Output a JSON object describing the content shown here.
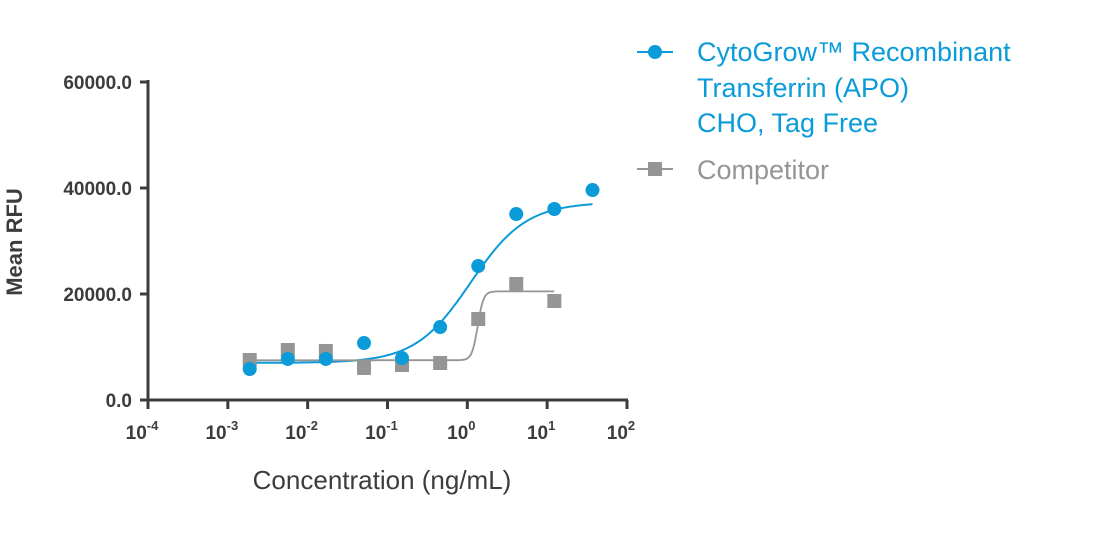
{
  "chart_data": {
    "type": "scatter",
    "title": "",
    "xlabel": "Concentration (ng/mL)",
    "ylabel": "Mean RFU",
    "xscale": "log",
    "xlim": [
      0.0001,
      100
    ],
    "ylim": [
      0,
      60000
    ],
    "x_ticks": [
      {
        "base": "10",
        "exp": "-4",
        "value": 0.0001
      },
      {
        "base": "10",
        "exp": "-3",
        "value": 0.001
      },
      {
        "base": "10",
        "exp": "-2",
        "value": 0.01
      },
      {
        "base": "10",
        "exp": "-1",
        "value": 0.1
      },
      {
        "base": "10",
        "exp": "0",
        "value": 1
      },
      {
        "base": "10",
        "exp": "1",
        "value": 10
      },
      {
        "base": "10",
        "exp": "2",
        "value": 100
      }
    ],
    "y_ticks": [
      {
        "label": "0.0",
        "value": 0
      },
      {
        "label": "20000.0",
        "value": 20000
      },
      {
        "label": "40000.0",
        "value": 40000
      },
      {
        "label": "60000.0",
        "value": 60000
      }
    ],
    "legend_position": "top-right",
    "series": [
      {
        "name": "CytoGrow™ Recombinant Transferrin (APO) CHO, Tag Free",
        "legend_lines": [
          "CytoGrow™ Recombinant",
          "Transferrin (APO)",
          "CHO, Tag Free"
        ],
        "color": "#0a9bd8",
        "marker": "circle",
        "x": [
          0.00188,
          0.00564,
          0.0169,
          0.0508,
          0.152,
          0.457,
          1.37,
          4.1,
          12.3,
          37
        ],
        "y": [
          5850,
          7740,
          7740,
          10750,
          7920,
          13770,
          25280,
          35090,
          36040,
          39620
        ],
        "fit": {
          "bottom": 7000,
          "top": 37300,
          "ec50": 1.1,
          "hill": 1.25
        }
      },
      {
        "name": "Competitor",
        "legend_lines": [
          "Competitor"
        ],
        "color": "#959595",
        "marker": "square",
        "x": [
          0.00188,
          0.00564,
          0.0169,
          0.0508,
          0.152,
          0.457,
          1.37,
          4.1,
          12.3
        ],
        "y": [
          7550,
          9430,
          9250,
          6040,
          6600,
          6980,
          15280,
          21890,
          18680
        ],
        "fit": {
          "bottom": 7500,
          "top": 20500,
          "ec50": 1.35,
          "hill": 12
        }
      }
    ]
  }
}
